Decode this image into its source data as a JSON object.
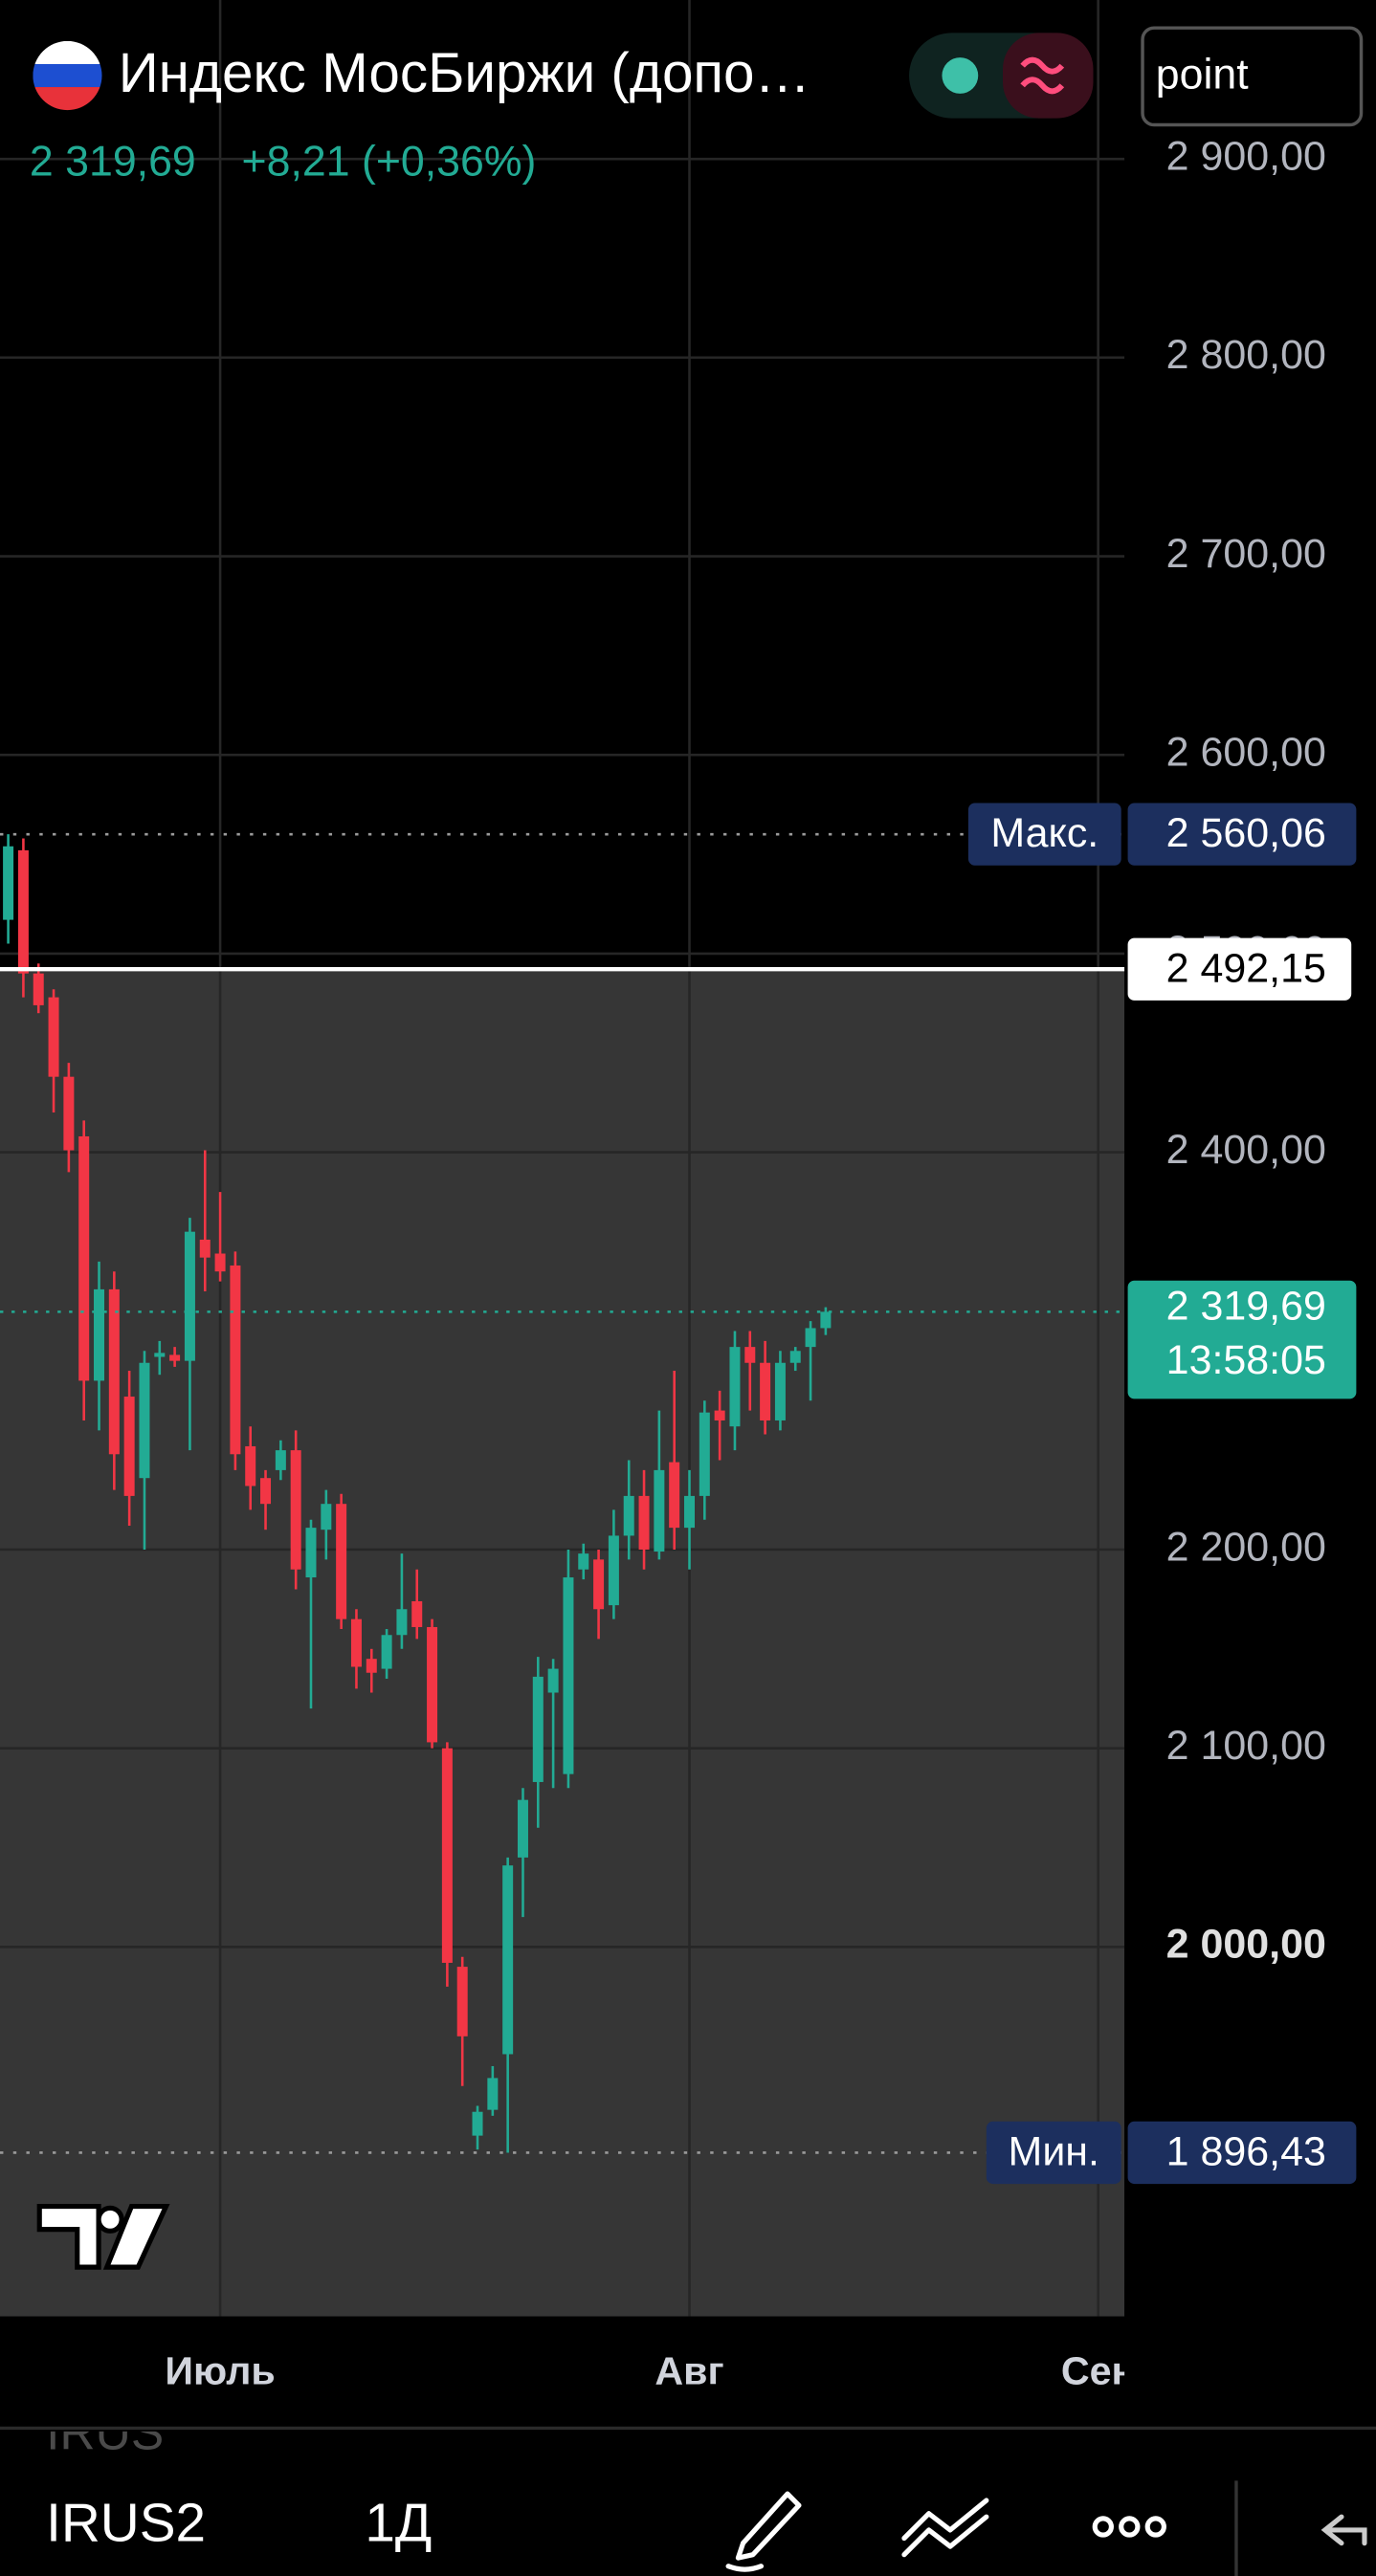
{
  "header": {
    "title": "Индекс МосБиржи (допо…",
    "change_label": "+8,21 (+0,36%)",
    "search_input": "point"
  },
  "toolbar": {
    "symbol_hint": "IRUS",
    "symbol": "IRUS2",
    "interval": "1Д"
  },
  "chart_data": {
    "type": "candlestick",
    "up_color": "#22ab94",
    "down_color": "#f23645",
    "ylim": [
      1814,
      2980
    ],
    "yticks": [
      {
        "value": 2000,
        "label": "2 000,00"
      },
      {
        "value": 2100,
        "label": "2 100,00"
      },
      {
        "value": 2200,
        "label": "2 200,00"
      },
      {
        "value": 2400,
        "label": "2 400,00"
      },
      {
        "value": 2500,
        "label": "2 500,00"
      },
      {
        "value": 2600,
        "label": "2 600,00"
      },
      {
        "value": 2700,
        "label": "2 700,00"
      },
      {
        "value": 2800,
        "label": "2 800,00"
      },
      {
        "value": 2900,
        "label": "2 900,00"
      }
    ],
    "grid": true,
    "categories": [
      null,
      null,
      null,
      null,
      null,
      null,
      null,
      null,
      null,
      null,
      null,
      null,
      null,
      null,
      "Июль",
      null,
      null,
      null,
      null,
      null,
      null,
      null,
      null,
      null,
      null,
      null,
      null,
      null,
      null,
      null,
      null,
      null,
      null,
      null,
      null,
      null,
      null,
      null,
      null,
      null,
      null,
      null,
      null,
      null,
      null,
      "Авг",
      null,
      null,
      null,
      null,
      null,
      null,
      null,
      null,
      null,
      null,
      null,
      null,
      null,
      null,
      null,
      null,
      null,
      null,
      null,
      null,
      null,
      null,
      null,
      null,
      null,
      null,
      "Сен"
    ],
    "open": [
      2517,
      2552,
      2490,
      2478,
      2438,
      2408,
      2285,
      2331,
      2277,
      2236,
      2297,
      2298,
      2295,
      2356,
      2349,
      2343,
      2252,
      2236,
      2240,
      2250,
      2186,
      2210,
      2223,
      2165,
      2145,
      2140,
      2157,
      2174,
      2161,
      2100,
      1990,
      1905,
      1918,
      1946,
      2045,
      2083,
      2128,
      2087,
      2190,
      2195,
      2172,
      2207,
      2227,
      2199,
      2244,
      2211,
      2227,
      2270,
      2262,
      2302,
      2294,
      2265,
      2294,
      2302,
      2311.48,
      null,
      null,
      null,
      null,
      null,
      null,
      null,
      null,
      null,
      null,
      null,
      null,
      null,
      null,
      null,
      null,
      null,
      null
    ],
    "high": [
      2560.06,
      2558,
      2495,
      2482,
      2445,
      2416,
      2345,
      2340,
      2290,
      2300,
      2305,
      2302,
      2367,
      2401,
      2380,
      2350,
      2262,
      2240,
      2255,
      2260,
      2215,
      2230,
      2228,
      2170,
      2150,
      2160,
      2198,
      2190,
      2165,
      2103,
      1995,
      1920,
      1940,
      2045,
      2080,
      2146,
      2145,
      2200,
      2203,
      2200,
      2220,
      2245,
      2240,
      2270,
      2290,
      2240,
      2275,
      2280,
      2310,
      2310,
      2305,
      2300,
      2302,
      2315,
      2322,
      null,
      null,
      null,
      null,
      null,
      null,
      null,
      null,
      null,
      null,
      null,
      null,
      null,
      null,
      null,
      null,
      null,
      null
    ],
    "low": [
      2505,
      2478,
      2470,
      2420,
      2390,
      2265,
      2260,
      2230,
      2212,
      2200,
      2288,
      2292,
      2250,
      2330,
      2335,
      2240,
      2220,
      2210,
      2235,
      2180,
      2120,
      2195,
      2160,
      2130,
      2128,
      2135,
      2150,
      2155,
      2100,
      1980,
      1930,
      1898,
      1915,
      1896.43,
      2015,
      2060,
      2080,
      2080,
      2185,
      2155,
      2165,
      2195,
      2190,
      2195,
      2200,
      2190,
      2215,
      2245,
      2250,
      2270,
      2258,
      2260,
      2290,
      2275,
      2308,
      null,
      null,
      null,
      null,
      null,
      null,
      null,
      null,
      null,
      null,
      null,
      null,
      null,
      null,
      null,
      null,
      null,
      null
    ],
    "close": [
      2554,
      2490,
      2474,
      2438,
      2401,
      2285,
      2331,
      2248,
      2227,
      2294,
      2299,
      2295,
      2360,
      2347,
      2340,
      2248,
      2232,
      2223,
      2250,
      2190,
      2211,
      2223,
      2165,
      2141,
      2138,
      2157,
      2170,
      2161,
      2103,
      1992,
      1955,
      1917,
      1934,
      2041,
      2074,
      2136,
      2140,
      2186,
      2198,
      2170,
      2207,
      2227,
      2200,
      2240,
      2211,
      2227,
      2269,
      2265,
      2302,
      2294,
      2265,
      2294,
      2300,
      2311.48,
      2319.69,
      null,
      null,
      null,
      null,
      null,
      null,
      null,
      null,
      null,
      null,
      null,
      null,
      null,
      null,
      null,
      null,
      null,
      null
    ],
    "last_price": {
      "value": 2319.69,
      "label": "2 319,69"
    },
    "countdown": "13:58:05",
    "max_marker": {
      "name": "Макс.",
      "value": 2560.06,
      "label": "2 560,06"
    },
    "min_marker": {
      "name": "Мин.",
      "value": 1896.43,
      "label": "1 896,43"
    },
    "crosshair": {
      "value": 2492.15,
      "label": "2 492,15"
    }
  }
}
